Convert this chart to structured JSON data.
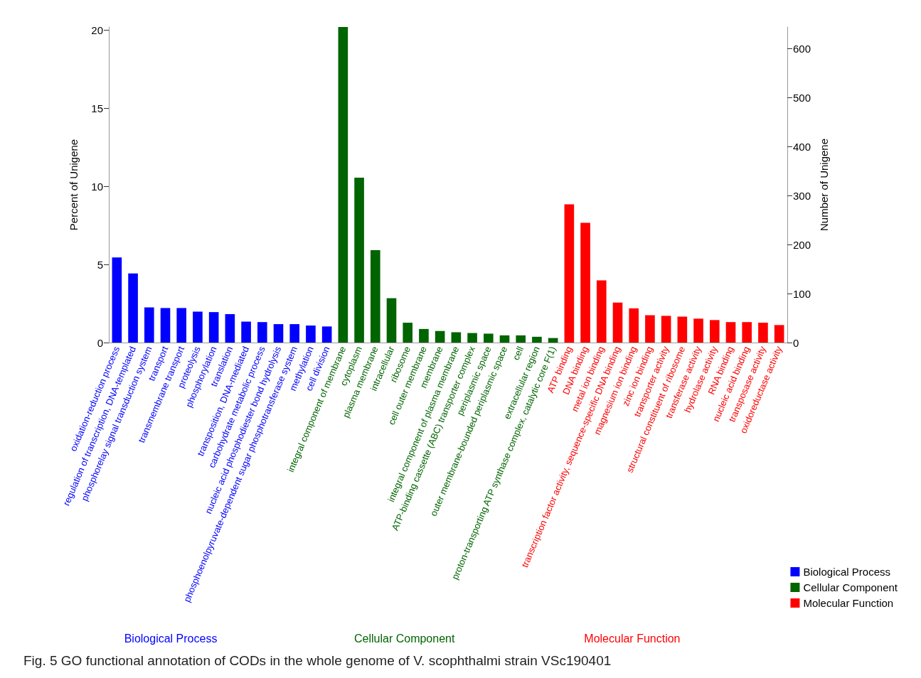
{
  "chart_data": {
    "type": "bar",
    "categories": [
      "oxidation-reduction process",
      "regulation of transcription, DNA-templated",
      "phosphorelay signal transduction system",
      "transport",
      "transmembrane transport",
      "proteolysis",
      "phosphorylation",
      "translation",
      "transposition, DNA-mediated",
      "carbohydrate metabolic process",
      "nucleic acid phosphodiester bond hydrolysis",
      "phosphoenolpyruvate-dependent sugar phosphotransferase system",
      "methylation",
      "cell division",
      "integral component of membrane",
      "cytoplasm",
      "plasma membrane",
      "intracellular",
      "ribosome",
      "cell outer membrane",
      "membrane",
      "integral component of plasma membrane",
      "ATP-binding cassette (ABC) transporter complex",
      "periplasmic space",
      "outer membrane-bounded periplasmic space",
      "cell",
      "extracellular region",
      "proton-transporting ATP synthase complex, catalytic core F(1)",
      "ATP binding",
      "DNA binding",
      "metal ion binding",
      "transcription factor activity, sequence-specific DNA binding",
      "magnesium ion binding",
      "zinc ion binding",
      "transporter activity",
      "structural constituent of ribosome",
      "transferase activity",
      "hydrolase activity",
      "RNA binding",
      "nucleic acid binding",
      "transposase activity",
      "oxidoreductase activity"
    ],
    "series": [
      {
        "name": "Biological Process",
        "color": "#0000ff",
        "values": [
          5.45,
          4.43,
          2.25,
          2.21,
          2.21,
          1.98,
          1.95,
          1.82,
          1.34,
          1.31,
          1.18,
          1.18,
          1.09,
          1.03,
          null,
          null,
          null,
          null,
          null,
          null,
          null,
          null,
          null,
          null,
          null,
          null,
          null,
          null,
          null,
          null,
          null,
          null,
          null,
          null,
          null,
          null,
          null,
          null,
          null,
          null,
          null,
          null
        ]
      },
      {
        "name": "Cellular Component",
        "color": "#006400",
        "values": [
          null,
          null,
          null,
          null,
          null,
          null,
          null,
          null,
          null,
          null,
          null,
          null,
          null,
          null,
          20.2,
          10.56,
          5.92,
          2.84,
          1.27,
          0.87,
          0.74,
          0.66,
          0.61,
          0.57,
          0.46,
          0.46,
          0.37,
          0.29,
          null,
          null,
          null,
          null,
          null,
          null,
          null,
          null,
          null,
          null,
          null,
          null,
          null,
          null
        ]
      },
      {
        "name": "Molecular Function",
        "color": "#ff0000",
        "values": [
          null,
          null,
          null,
          null,
          null,
          null,
          null,
          null,
          null,
          null,
          null,
          null,
          null,
          null,
          null,
          null,
          null,
          null,
          null,
          null,
          null,
          null,
          null,
          null,
          null,
          null,
          null,
          null,
          8.85,
          7.67,
          3.98,
          2.56,
          2.19,
          1.75,
          1.71,
          1.66,
          1.53,
          1.44,
          1.31,
          1.31,
          1.27,
          1.12
        ]
      }
    ],
    "ylabel": "Percent of Unigene",
    "y2label": "Number of Unigene",
    "ylim": [
      0,
      20.2
    ],
    "yticks": [
      0,
      5,
      10,
      15,
      20
    ],
    "y2lim": [
      0,
      644
    ],
    "y2ticks": [
      0,
      100,
      200,
      300,
      400,
      500,
      600
    ],
    "grid": false,
    "legend": "bottom right",
    "annotations": [
      "Biological Process",
      "Cellular Component",
      "Molecular Function",
      "Fig. 5 GO functional annotation of CODs in the whole genome of V. scophthalmi strain VSc190401"
    ]
  }
}
